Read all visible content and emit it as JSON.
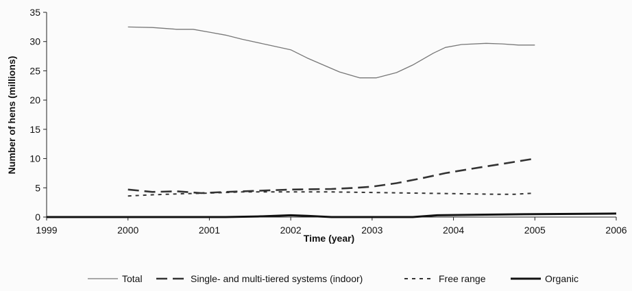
{
  "chart_data": {
    "type": "line",
    "xlabel": "Time (year)",
    "ylabel": "Number of hens (millions)",
    "xlim": [
      1999,
      2006
    ],
    "ylim": [
      0,
      35
    ],
    "x_ticks": [
      "1999",
      "2000",
      "2001",
      "2002",
      "2003",
      "2004",
      "2005",
      "2006"
    ],
    "y_ticks": [
      "0",
      "5",
      "10",
      "15",
      "20",
      "25",
      "30",
      "35"
    ],
    "grid": false,
    "legend_position": "bottom",
    "series": [
      {
        "name": "Total",
        "style": "solid-thin",
        "color": "#777777",
        "points": [
          [
            2000,
            32.5
          ],
          [
            2000.3,
            32.4
          ],
          [
            2000.6,
            32.1
          ],
          [
            2000.8,
            32.1
          ],
          [
            2001.0,
            31.6
          ],
          [
            2001.2,
            31.1
          ],
          [
            2001.4,
            30.4
          ],
          [
            2001.7,
            29.5
          ],
          [
            2002.0,
            28.6
          ],
          [
            2002.2,
            27.2
          ],
          [
            2002.4,
            26.0
          ],
          [
            2002.6,
            24.8
          ],
          [
            2002.85,
            23.8
          ],
          [
            2003.05,
            23.8
          ],
          [
            2003.3,
            24.7
          ],
          [
            2003.5,
            26.0
          ],
          [
            2003.75,
            28.0
          ],
          [
            2003.9,
            29.0
          ],
          [
            2004.1,
            29.5
          ],
          [
            2004.4,
            29.7
          ],
          [
            2004.6,
            29.6
          ],
          [
            2004.8,
            29.4
          ],
          [
            2005.0,
            29.4
          ]
        ]
      },
      {
        "name": "Single- and multi-tiered systems (indoor)",
        "style": "long-dash",
        "color": "#333333",
        "points": [
          [
            2000,
            4.7
          ],
          [
            2000.3,
            4.3
          ],
          [
            2000.6,
            4.4
          ],
          [
            2000.9,
            4.1
          ],
          [
            2001.2,
            4.3
          ],
          [
            2001.6,
            4.5
          ],
          [
            2002.0,
            4.7
          ],
          [
            2002.5,
            4.8
          ],
          [
            2002.8,
            5.0
          ],
          [
            2003.0,
            5.2
          ],
          [
            2003.3,
            5.8
          ],
          [
            2003.6,
            6.6
          ],
          [
            2003.9,
            7.5
          ],
          [
            2004.2,
            8.2
          ],
          [
            2004.6,
            9.1
          ],
          [
            2005.0,
            10.0
          ]
        ]
      },
      {
        "name": "Free range",
        "style": "short-dash",
        "color": "#333333",
        "points": [
          [
            2000,
            3.6
          ],
          [
            2000.3,
            3.8
          ],
          [
            2000.7,
            4.0
          ],
          [
            2001.0,
            4.1
          ],
          [
            2001.4,
            4.3
          ],
          [
            2002.0,
            4.3
          ],
          [
            2002.5,
            4.3
          ],
          [
            2003.0,
            4.2
          ],
          [
            2003.5,
            4.1
          ],
          [
            2004.0,
            4.0
          ],
          [
            2004.5,
            3.9
          ],
          [
            2004.75,
            3.9
          ],
          [
            2005.0,
            4.1
          ]
        ]
      },
      {
        "name": "Organic",
        "style": "solid-thick",
        "color": "#111111",
        "points": [
          [
            1999.0,
            0.0
          ],
          [
            2001.2,
            0.0
          ],
          [
            2001.6,
            0.1
          ],
          [
            2002.0,
            0.3
          ],
          [
            2002.2,
            0.2
          ],
          [
            2002.5,
            0.0
          ],
          [
            2003.0,
            0.0
          ],
          [
            2003.5,
            0.0
          ],
          [
            2003.8,
            0.3
          ],
          [
            2004.3,
            0.4
          ],
          [
            2005.0,
            0.5
          ],
          [
            2006.0,
            0.6
          ]
        ]
      }
    ]
  }
}
